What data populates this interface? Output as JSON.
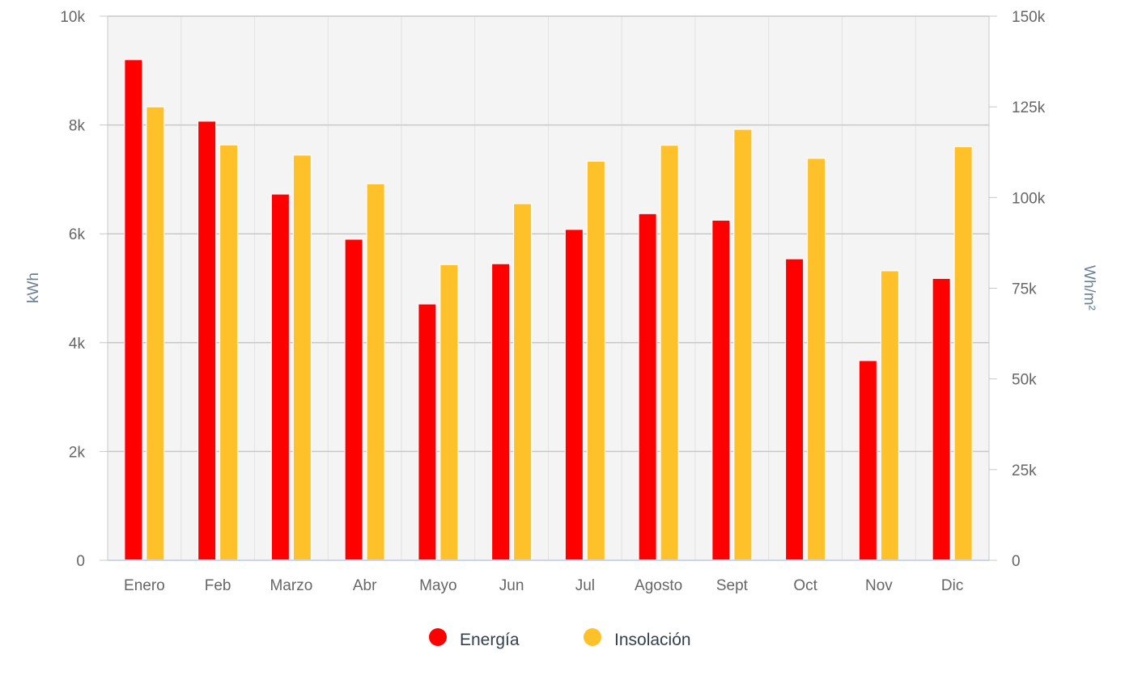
{
  "chart_data": {
    "type": "bar",
    "categories": [
      "Enero",
      "Feb",
      "Marzo",
      "Abr",
      "Mayo",
      "Jun",
      "Jul",
      "Agosto",
      "Sept",
      "Oct",
      "Nov",
      "Dic"
    ],
    "series": [
      {
        "name": "Energía",
        "axis": "left",
        "color": "#ff0000",
        "values": [
          9200,
          8070,
          6730,
          5900,
          4710,
          5450,
          6080,
          6370,
          6250,
          5540,
          3670,
          5180
        ]
      },
      {
        "name": "Insolación",
        "axis": "right",
        "color": "#ffc12a",
        "values": [
          125000,
          114500,
          111700,
          103800,
          81500,
          98300,
          110000,
          114400,
          118800,
          110800,
          79800,
          114000
        ]
      }
    ],
    "left_axis": {
      "title": "kWh",
      "min": 0,
      "max": 10000,
      "ticks": [
        0,
        2000,
        4000,
        6000,
        8000,
        10000
      ],
      "tick_labels": [
        "0",
        "2k",
        "4k",
        "6k",
        "8k",
        "10k"
      ]
    },
    "right_axis": {
      "title": "Wh/m²",
      "min": 0,
      "max": 150000,
      "ticks": [
        0,
        25000,
        50000,
        75000,
        100000,
        125000,
        150000
      ],
      "tick_labels": [
        "0",
        "25k",
        "50k",
        "75k",
        "100k",
        "125k",
        "150k"
      ]
    },
    "grid": true,
    "legend_position": "bottom-center",
    "plot_background": "#f4f4f4"
  }
}
